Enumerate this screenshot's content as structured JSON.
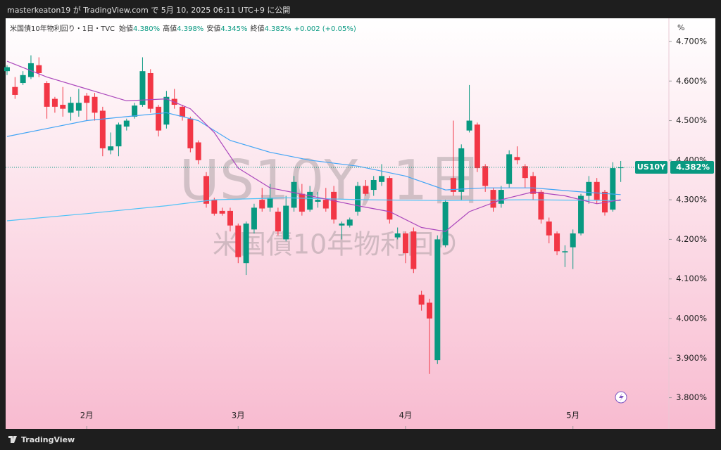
{
  "header": "masterkeaton19 が TradingView.com で 5月 10, 2025 06:11 UTC+9 に公開",
  "footer": "TradingView",
  "chart_data": {
    "type": "candlestick",
    "symbol_line": "米国債10年物利回り・1日・TVC",
    "legend": [
      {
        "label": "始値",
        "value": "4.380%"
      },
      {
        "label": "高値",
        "value": "4.398%"
      },
      {
        "label": "安値",
        "value": "4.345%"
      },
      {
        "label": "終値",
        "value": "4.382%"
      }
    ],
    "change": "+0.002 (+0.05%)",
    "watermark": [
      "US10Y, 1日",
      "米国債10年物利回り"
    ],
    "unit": "%",
    "price_tag": {
      "symbol": "US10Y",
      "label": "4.382%"
    },
    "up_color": "#089981",
    "down_color": "#f23645",
    "open": [
      4.625,
      4.585,
      4.595,
      4.61,
      4.64,
      4.595,
      4.555,
      4.54,
      4.52,
      4.525,
      4.563,
      4.56,
      4.525,
      4.425,
      4.435,
      4.485,
      4.51,
      4.54,
      4.62,
      4.535,
      4.49,
      4.555,
      4.535,
      4.505,
      4.445,
      4.36,
      4.3,
      4.272,
      4.272,
      4.235,
      4.14,
      4.225,
      4.3,
      4.28,
      4.27,
      4.2,
      4.28,
      4.315,
      4.275,
      4.295,
      4.3,
      4.32,
      4.235,
      4.235,
      4.27,
      4.335,
      4.325,
      4.345,
      4.355,
      4.205,
      4.215,
      4.22,
      4.06,
      4.04,
      3.895,
      4.185,
      4.355,
      4.32,
      4.475,
      4.49,
      4.385,
      4.325,
      4.29,
      4.34,
      4.408,
      4.385,
      4.36,
      4.32,
      4.245,
      4.215,
      4.167,
      4.18,
      4.215,
      4.31,
      4.345,
      4.32,
      4.275,
      4.38
    ],
    "high": [
      4.64,
      4.61,
      4.625,
      4.665,
      4.66,
      4.6,
      4.56,
      4.585,
      4.56,
      4.58,
      4.57,
      4.57,
      4.535,
      4.47,
      4.495,
      4.505,
      4.545,
      4.66,
      4.63,
      4.54,
      4.575,
      4.58,
      4.54,
      4.51,
      4.45,
      4.37,
      4.305,
      4.28,
      4.28,
      4.24,
      4.245,
      4.29,
      4.33,
      4.34,
      4.28,
      4.31,
      4.36,
      4.34,
      4.335,
      4.32,
      4.33,
      4.335,
      4.245,
      4.255,
      4.345,
      4.35,
      4.36,
      4.39,
      4.36,
      4.23,
      4.22,
      4.23,
      4.07,
      4.05,
      4.21,
      4.3,
      4.5,
      4.44,
      4.59,
      4.495,
      4.39,
      4.33,
      4.335,
      4.425,
      4.435,
      4.39,
      4.37,
      4.325,
      4.255,
      4.22,
      4.185,
      4.225,
      4.315,
      4.36,
      4.355,
      4.325,
      4.395,
      4.398
    ],
    "low": [
      4.615,
      4.555,
      4.59,
      4.605,
      4.61,
      4.505,
      4.52,
      4.51,
      4.5,
      4.51,
      4.5,
      4.5,
      4.41,
      4.415,
      4.41,
      4.475,
      4.505,
      4.535,
      4.52,
      4.46,
      4.48,
      4.53,
      4.5,
      4.42,
      4.39,
      4.28,
      4.26,
      4.26,
      4.22,
      4.14,
      4.11,
      4.215,
      4.27,
      4.27,
      4.21,
      4.195,
      4.27,
      4.26,
      4.27,
      4.28,
      4.27,
      4.24,
      4.2,
      4.23,
      4.26,
      4.31,
      4.31,
      4.335,
      4.24,
      4.2,
      4.14,
      4.115,
      4.02,
      3.86,
      3.885,
      4.18,
      4.31,
      4.3,
      4.47,
      4.37,
      4.32,
      4.27,
      4.28,
      4.33,
      4.39,
      4.33,
      4.3,
      4.24,
      4.19,
      4.16,
      4.13,
      4.125,
      4.21,
      4.29,
      4.29,
      4.26,
      4.27,
      4.345
    ],
    "close": [
      4.635,
      4.565,
      4.615,
      4.645,
      4.62,
      4.535,
      4.535,
      4.53,
      4.545,
      4.545,
      4.545,
      4.52,
      4.43,
      4.435,
      4.49,
      4.5,
      4.538,
      4.625,
      4.53,
      4.475,
      4.56,
      4.54,
      4.51,
      4.43,
      4.4,
      4.29,
      4.265,
      4.265,
      4.235,
      4.155,
      4.24,
      4.28,
      4.278,
      4.305,
      4.22,
      4.285,
      4.345,
      4.27,
      4.32,
      4.3,
      4.278,
      4.25,
      4.24,
      4.25,
      4.335,
      4.315,
      4.35,
      4.36,
      4.25,
      4.215,
      4.165,
      4.125,
      4.035,
      4.0,
      4.2,
      4.295,
      4.32,
      4.43,
      4.5,
      4.38,
      4.335,
      4.28,
      4.325,
      4.415,
      4.4,
      4.355,
      4.315,
      4.25,
      4.21,
      4.17,
      4.17,
      4.215,
      4.31,
      4.345,
      4.3,
      4.268,
      4.38,
      4.382
    ],
    "series": [
      {
        "color": "#4fc3f7",
        "x": [
          0,
          10,
          20,
          26,
          35,
          45,
          55,
          65,
          77
        ],
        "values": [
          4.247,
          4.265,
          4.285,
          4.3,
          4.305,
          4.3,
          4.298,
          4.3,
          4.298
        ]
      },
      {
        "color": "#42a5f5",
        "x": [
          0,
          5,
          10,
          15,
          20,
          24,
          28,
          33,
          38,
          44,
          50,
          55,
          60,
          66,
          72,
          77
        ],
        "values": [
          4.46,
          4.48,
          4.5,
          4.51,
          4.52,
          4.5,
          4.45,
          4.42,
          4.4,
          4.385,
          4.36,
          4.325,
          4.33,
          4.33,
          4.32,
          4.313
        ]
      },
      {
        "color": "#ab47bc",
        "x": [
          0,
          5,
          10,
          15,
          20,
          23,
          26,
          29,
          33,
          38,
          44,
          48,
          52,
          55,
          58,
          62,
          66,
          70,
          74,
          77
        ],
        "values": [
          4.65,
          4.61,
          4.58,
          4.55,
          4.555,
          4.53,
          4.47,
          4.38,
          4.33,
          4.31,
          4.285,
          4.27,
          4.23,
          4.22,
          4.27,
          4.3,
          4.32,
          4.31,
          4.29,
          4.3
        ]
      }
    ],
    "xticks": [
      {
        "value": 10,
        "label": "2月"
      },
      {
        "value": 29,
        "label": "3月"
      },
      {
        "value": 50,
        "label": "4月"
      },
      {
        "value": 71,
        "label": "5月"
      }
    ],
    "ylim": [
      3.73,
      4.755
    ],
    "yticks": [
      {
        "value": 4.7,
        "label": "4.700%"
      },
      {
        "value": 4.6,
        "label": "4.600%"
      },
      {
        "value": 4.5,
        "label": "4.500%"
      },
      {
        "value": 4.4,
        "label": "4.400%"
      },
      {
        "value": 4.3,
        "label": "4.300%"
      },
      {
        "value": 4.2,
        "label": "4.200%"
      },
      {
        "value": 4.1,
        "label": "4.100%"
      },
      {
        "value": 4.0,
        "label": "4.000%"
      },
      {
        "value": 3.9,
        "label": "3.900%"
      },
      {
        "value": 3.8,
        "label": "3.800%"
      }
    ]
  }
}
